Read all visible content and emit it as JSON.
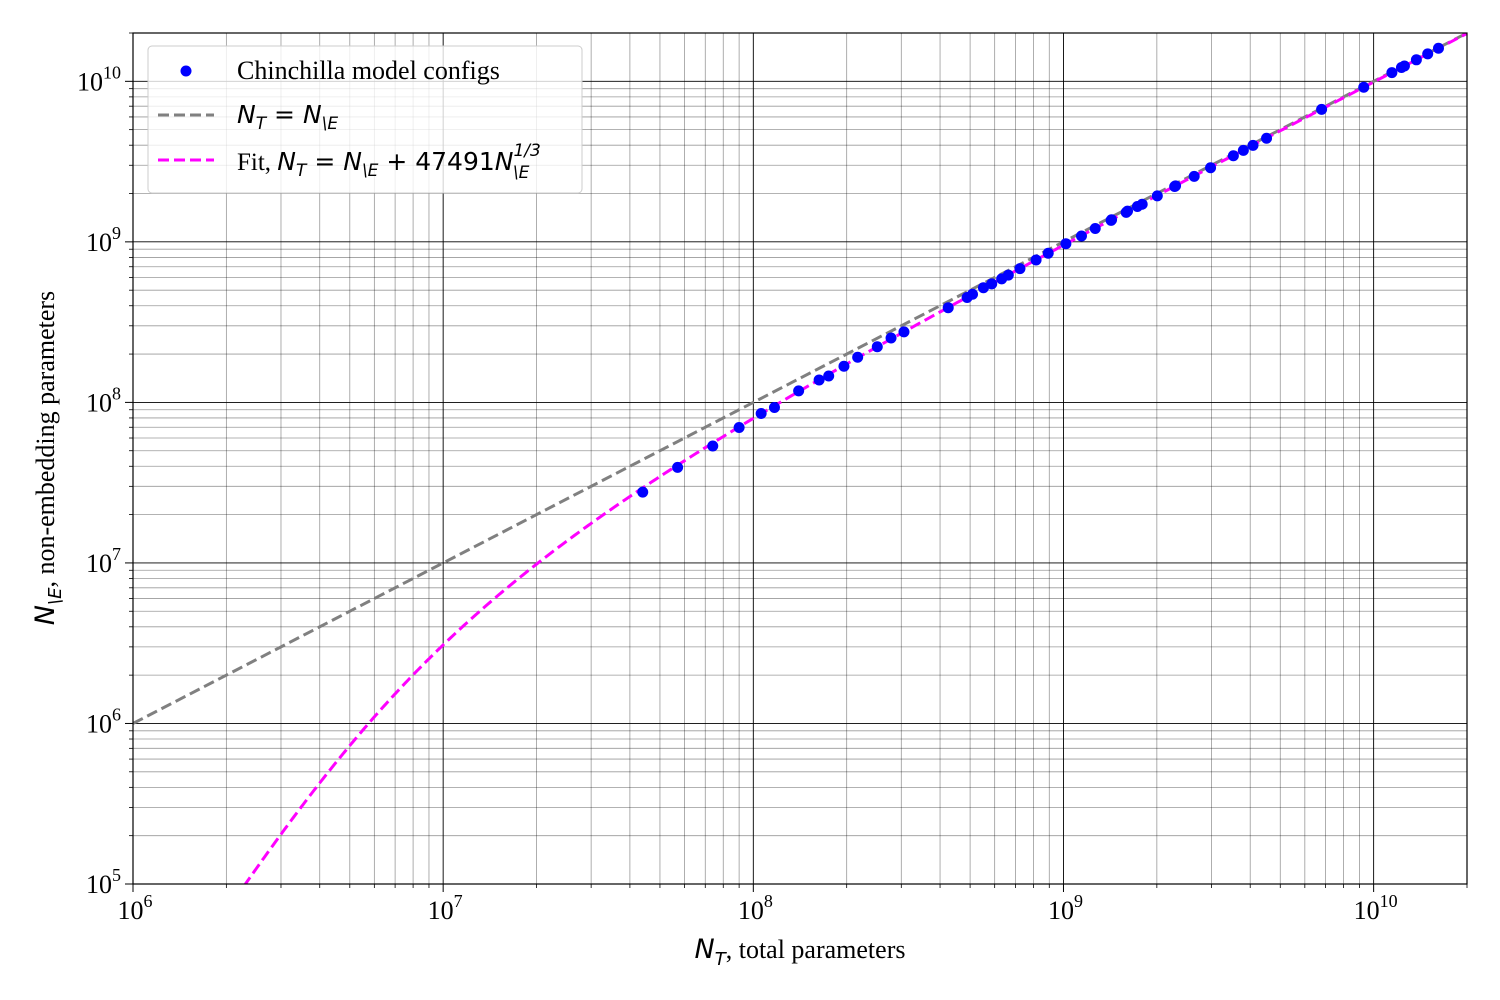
{
  "chart_data": {
    "type": "scatter",
    "x_scale": "log",
    "y_scale": "log",
    "xlim": [
      1000000,
      20000000000
    ],
    "ylim": [
      100000,
      20000000000
    ],
    "grid": "major and minor",
    "legend_position": "upper-left",
    "xlabel": {
      "math": "N_T",
      "text": ", total parameters"
    },
    "ylabel": {
      "math": "N_\\E",
      "text": ", non-embedding parameters"
    },
    "x_ticks": [
      {
        "value": 1000000,
        "base": "10",
        "exp": "6"
      },
      {
        "value": 10000000,
        "base": "10",
        "exp": "7"
      },
      {
        "value": 100000000,
        "base": "10",
        "exp": "8"
      },
      {
        "value": 1000000000,
        "base": "10",
        "exp": "9"
      },
      {
        "value": 10000000000,
        "base": "10",
        "exp": "10"
      }
    ],
    "y_ticks": [
      {
        "value": 100000,
        "base": "10",
        "exp": "5"
      },
      {
        "value": 1000000,
        "base": "10",
        "exp": "6"
      },
      {
        "value": 10000000,
        "base": "10",
        "exp": "7"
      },
      {
        "value": 100000000,
        "base": "10",
        "exp": "8"
      },
      {
        "value": 1000000000,
        "base": "10",
        "exp": "9"
      },
      {
        "value": 10000000000,
        "base": "10",
        "exp": "10"
      }
    ],
    "series": [
      {
        "name": "Chinchilla model configs",
        "kind": "scatter",
        "color": "#0000ff",
        "points": [
          [
            44000000,
            27600000
          ],
          [
            57000000,
            39400000
          ],
          [
            74000000,
            53500000
          ],
          [
            90000000,
            69800000
          ],
          [
            106000000,
            85300000
          ],
          [
            117000000,
            92900000
          ],
          [
            140000000,
            118000000
          ],
          [
            163000000,
            138000000
          ],
          [
            175000000,
            146000000
          ],
          [
            196000000,
            168000000
          ],
          [
            217000000,
            191000000
          ],
          [
            251000000,
            222000000
          ],
          [
            278000000,
            252000000
          ],
          [
            306000000,
            275000000
          ],
          [
            425000000,
            389000000
          ],
          [
            489000000,
            450000000
          ],
          [
            509000000,
            472000000
          ],
          [
            552000000,
            518000000
          ],
          [
            587000000,
            547000000
          ],
          [
            632000000,
            588000000
          ],
          [
            664000000,
            621000000
          ],
          [
            724000000,
            681000000
          ],
          [
            816000000,
            771000000
          ],
          [
            893000000,
            849000000
          ],
          [
            1018000000,
            974000000
          ],
          [
            1143000000,
            1087000000
          ],
          [
            1266000000,
            1211000000
          ],
          [
            1424000000,
            1360000000
          ],
          [
            1429000000,
            1373000000
          ],
          [
            1593000000,
            1527000000
          ],
          [
            1609000000,
            1555000000
          ],
          [
            1731000000,
            1660000000
          ],
          [
            1794000000,
            1714000000
          ],
          [
            2007000000,
            1935000000
          ],
          [
            2283000000,
            2213000000
          ],
          [
            2298000000,
            2232000000
          ],
          [
            2639000000,
            2559000000
          ],
          [
            2980000000,
            2893000000
          ],
          [
            3530000000,
            3441000000
          ],
          [
            3802000000,
            3714000000
          ],
          [
            4084000000,
            3992000000
          ],
          [
            4516000000,
            4419000000
          ],
          [
            6796000000,
            6689000000
          ],
          [
            9293000000,
            9181000000
          ],
          [
            11452000000,
            11335000000
          ],
          [
            12295000000,
            12185000000
          ],
          [
            12569000000,
            12455000000
          ],
          [
            13735000000,
            13616000000
          ],
          [
            14940000000,
            14819000000
          ],
          [
            16183000000,
            16063000000
          ]
        ]
      },
      {
        "name": "N_T = N_\\E",
        "kind": "dashed-line",
        "color": "#808080",
        "formula": "y = x"
      },
      {
        "name": "Fit, N_T = N_\\E + 47491N_\\E^{1/3}",
        "kind": "dashed-line",
        "color": "#ff00ff",
        "formula": "x = y + 47491 * y^(1/3)",
        "coefficient": 47491
      }
    ]
  }
}
